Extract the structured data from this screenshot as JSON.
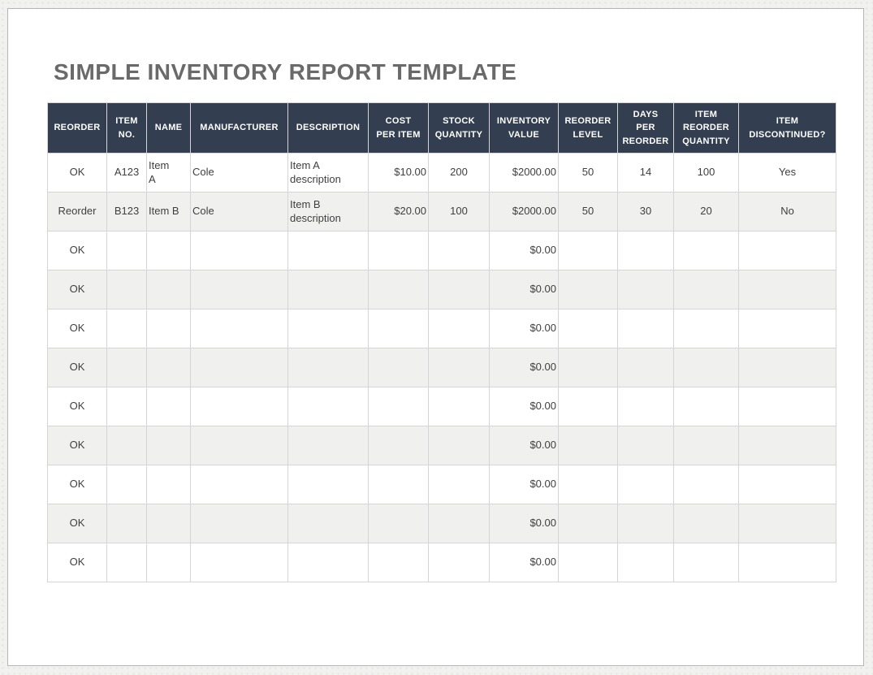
{
  "page": {
    "title": "SIMPLE INVENTORY REPORT TEMPLATE"
  },
  "colors": {
    "header_bg": "#333F50",
    "header_text": "#FFFFFF",
    "alt_row_bg": "#F0F0EF",
    "body_text": "#3F3F3F",
    "title_text": "#6A6A6A",
    "grid_line": "#D5D5D5",
    "canvas_bg": "#F1F1EF",
    "page_border": "#B5B5B5"
  },
  "table": {
    "headers": [
      "REORDER",
      "ITEM\nNO.",
      "NAME",
      "MANUFACTURER",
      "DESCRIPTION",
      "COST\nPER ITEM",
      "STOCK\nQUANTITY",
      "INVENTORY\nVALUE",
      "REORDER\nLEVEL",
      "DAYS\nPER\nREORDER",
      "ITEM\nREORDER\nQUANTITY",
      "ITEM\nDISCONTINUED?"
    ],
    "rows": [
      [
        "OK",
        "A123",
        "Item\nA",
        "Cole",
        "Item A\ndescription",
        "$10.00",
        "200",
        "$2000.00",
        "50",
        "14",
        "100",
        "Yes"
      ],
      [
        "Reorder",
        "B123",
        "Item B",
        "Cole",
        "Item B\ndescription",
        "$20.00",
        "100",
        "$2000.00",
        "50",
        "30",
        "20",
        "No"
      ],
      [
        "OK",
        "",
        "",
        "",
        "",
        "",
        "",
        "$0.00",
        "",
        "",
        "",
        ""
      ],
      [
        "OK",
        "",
        "",
        "",
        "",
        "",
        "",
        "$0.00",
        "",
        "",
        "",
        ""
      ],
      [
        "OK",
        "",
        "",
        "",
        "",
        "",
        "",
        "$0.00",
        "",
        "",
        "",
        ""
      ],
      [
        "OK",
        "",
        "",
        "",
        "",
        "",
        "",
        "$0.00",
        "",
        "",
        "",
        ""
      ],
      [
        "OK",
        "",
        "",
        "",
        "",
        "",
        "",
        "$0.00",
        "",
        "",
        "",
        ""
      ],
      [
        "OK",
        "",
        "",
        "",
        "",
        "",
        "",
        "$0.00",
        "",
        "",
        "",
        ""
      ],
      [
        "OK",
        "",
        "",
        "",
        "",
        "",
        "",
        "$0.00",
        "",
        "",
        "",
        ""
      ],
      [
        "OK",
        "",
        "",
        "",
        "",
        "",
        "",
        "$0.00",
        "",
        "",
        "",
        ""
      ],
      [
        "OK",
        "",
        "",
        "",
        "",
        "",
        "",
        "$0.00",
        "",
        "",
        "",
        ""
      ]
    ]
  }
}
